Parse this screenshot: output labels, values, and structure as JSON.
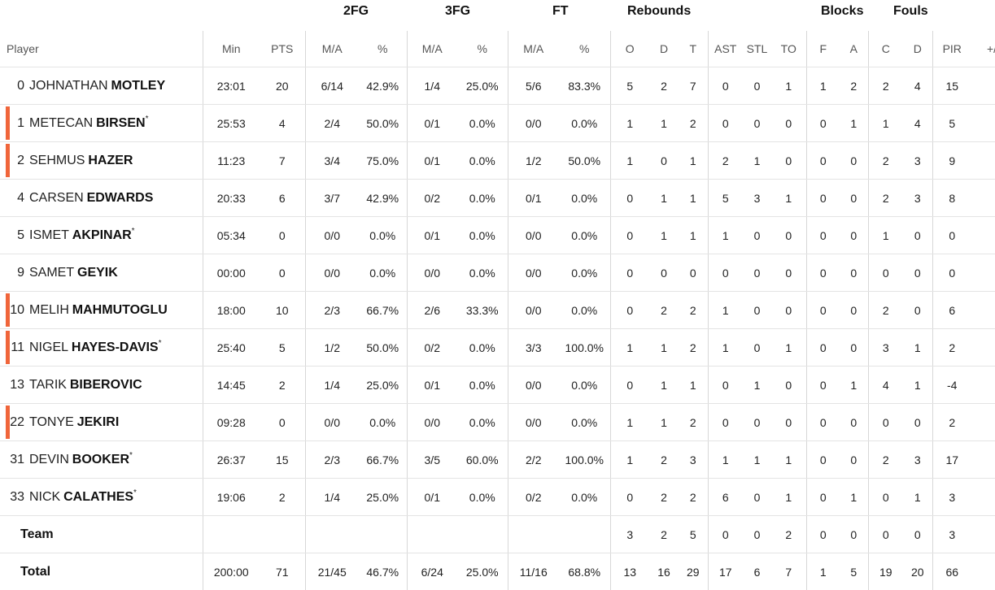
{
  "groups": {
    "fg2": "2FG",
    "fg3": "3FG",
    "ft": "FT",
    "rebounds": "Rebounds",
    "blocks": "Blocks",
    "fouls": "Fouls"
  },
  "headers": {
    "player": "Player",
    "min": "Min",
    "pts": "PTS",
    "fg2_ma": "M/A",
    "fg2_pct": "%",
    "fg3_ma": "M/A",
    "fg3_pct": "%",
    "ft_ma": "M/A",
    "ft_pct": "%",
    "reb_o": "O",
    "reb_d": "D",
    "reb_t": "T",
    "ast": "AST",
    "stl": "STL",
    "to": "TO",
    "blk_f": "F",
    "blk_a": "A",
    "foul_c": "C",
    "foul_d": "D",
    "pir": "PIR",
    "pm": "+/"
  },
  "colors": {
    "starter_accent": "#f0653a",
    "divider": "#d7d7d7"
  },
  "players": [
    {
      "num": "0",
      "first": "JOHNATHAN",
      "last": "MOTLEY",
      "star": "",
      "starter": false,
      "min": "23:01",
      "pts": "20",
      "fg2": "6/14",
      "fg2p": "42.9%",
      "fg3": "1/4",
      "fg3p": "25.0%",
      "ft": "5/6",
      "ftp": "83.3%",
      "o": "5",
      "d": "2",
      "t": "7",
      "ast": "0",
      "stl": "0",
      "to": "1",
      "bf": "1",
      "ba": "2",
      "fc": "2",
      "fd": "4",
      "pir": "15"
    },
    {
      "num": "1",
      "first": "METECAN",
      "last": "BIRSEN",
      "star": "*",
      "starter": true,
      "min": "25:53",
      "pts": "4",
      "fg2": "2/4",
      "fg2p": "50.0%",
      "fg3": "0/1",
      "fg3p": "0.0%",
      "ft": "0/0",
      "ftp": "0.0%",
      "o": "1",
      "d": "1",
      "t": "2",
      "ast": "0",
      "stl": "0",
      "to": "0",
      "bf": "0",
      "ba": "1",
      "fc": "1",
      "fd": "4",
      "pir": "5"
    },
    {
      "num": "2",
      "first": "SEHMUS",
      "last": "HAZER",
      "star": "",
      "starter": true,
      "min": "11:23",
      "pts": "7",
      "fg2": "3/4",
      "fg2p": "75.0%",
      "fg3": "0/1",
      "fg3p": "0.0%",
      "ft": "1/2",
      "ftp": "50.0%",
      "o": "1",
      "d": "0",
      "t": "1",
      "ast": "2",
      "stl": "1",
      "to": "0",
      "bf": "0",
      "ba": "0",
      "fc": "2",
      "fd": "3",
      "pir": "9"
    },
    {
      "num": "4",
      "first": "CARSEN",
      "last": "EDWARDS",
      "star": "",
      "starter": false,
      "min": "20:33",
      "pts": "6",
      "fg2": "3/7",
      "fg2p": "42.9%",
      "fg3": "0/2",
      "fg3p": "0.0%",
      "ft": "0/1",
      "ftp": "0.0%",
      "o": "0",
      "d": "1",
      "t": "1",
      "ast": "5",
      "stl": "3",
      "to": "1",
      "bf": "0",
      "ba": "0",
      "fc": "2",
      "fd": "3",
      "pir": "8"
    },
    {
      "num": "5",
      "first": "ISMET",
      "last": "AKPINAR",
      "star": "*",
      "starter": false,
      "min": "05:34",
      "pts": "0",
      "fg2": "0/0",
      "fg2p": "0.0%",
      "fg3": "0/1",
      "fg3p": "0.0%",
      "ft": "0/0",
      "ftp": "0.0%",
      "o": "0",
      "d": "1",
      "t": "1",
      "ast": "1",
      "stl": "0",
      "to": "0",
      "bf": "0",
      "ba": "0",
      "fc": "1",
      "fd": "0",
      "pir": "0"
    },
    {
      "num": "9",
      "first": "SAMET",
      "last": "GEYIK",
      "star": "",
      "starter": false,
      "min": "00:00",
      "pts": "0",
      "fg2": "0/0",
      "fg2p": "0.0%",
      "fg3": "0/0",
      "fg3p": "0.0%",
      "ft": "0/0",
      "ftp": "0.0%",
      "o": "0",
      "d": "0",
      "t": "0",
      "ast": "0",
      "stl": "0",
      "to": "0",
      "bf": "0",
      "ba": "0",
      "fc": "0",
      "fd": "0",
      "pir": "0"
    },
    {
      "num": "10",
      "first": "MELIH",
      "last": "MAHMUTOGLU",
      "star": "",
      "starter": true,
      "min": "18:00",
      "pts": "10",
      "fg2": "2/3",
      "fg2p": "66.7%",
      "fg3": "2/6",
      "fg3p": "33.3%",
      "ft": "0/0",
      "ftp": "0.0%",
      "o": "0",
      "d": "2",
      "t": "2",
      "ast": "1",
      "stl": "0",
      "to": "0",
      "bf": "0",
      "ba": "0",
      "fc": "2",
      "fd": "0",
      "pir": "6"
    },
    {
      "num": "11",
      "first": "NIGEL",
      "last": "HAYES-DAVIS",
      "star": "*",
      "starter": true,
      "min": "25:40",
      "pts": "5",
      "fg2": "1/2",
      "fg2p": "50.0%",
      "fg3": "0/2",
      "fg3p": "0.0%",
      "ft": "3/3",
      "ftp": "100.0%",
      "o": "1",
      "d": "1",
      "t": "2",
      "ast": "1",
      "stl": "0",
      "to": "1",
      "bf": "0",
      "ba": "0",
      "fc": "3",
      "fd": "1",
      "pir": "2"
    },
    {
      "num": "13",
      "first": "TARIK",
      "last": "BIBEROVIC",
      "star": "",
      "starter": false,
      "min": "14:45",
      "pts": "2",
      "fg2": "1/4",
      "fg2p": "25.0%",
      "fg3": "0/1",
      "fg3p": "0.0%",
      "ft": "0/0",
      "ftp": "0.0%",
      "o": "0",
      "d": "1",
      "t": "1",
      "ast": "0",
      "stl": "1",
      "to": "0",
      "bf": "0",
      "ba": "1",
      "fc": "4",
      "fd": "1",
      "pir": "-4"
    },
    {
      "num": "22",
      "first": "TONYE",
      "last": "JEKIRI",
      "star": "",
      "starter": true,
      "min": "09:28",
      "pts": "0",
      "fg2": "0/0",
      "fg2p": "0.0%",
      "fg3": "0/0",
      "fg3p": "0.0%",
      "ft": "0/0",
      "ftp": "0.0%",
      "o": "1",
      "d": "1",
      "t": "2",
      "ast": "0",
      "stl": "0",
      "to": "0",
      "bf": "0",
      "ba": "0",
      "fc": "0",
      "fd": "0",
      "pir": "2"
    },
    {
      "num": "31",
      "first": "DEVIN",
      "last": "BOOKER",
      "star": "*",
      "starter": false,
      "min": "26:37",
      "pts": "15",
      "fg2": "2/3",
      "fg2p": "66.7%",
      "fg3": "3/5",
      "fg3p": "60.0%",
      "ft": "2/2",
      "ftp": "100.0%",
      "o": "1",
      "d": "2",
      "t": "3",
      "ast": "1",
      "stl": "1",
      "to": "1",
      "bf": "0",
      "ba": "0",
      "fc": "2",
      "fd": "3",
      "pir": "17"
    },
    {
      "num": "33",
      "first": "NICK",
      "last": "CALATHES",
      "star": "*",
      "starter": false,
      "min": "19:06",
      "pts": "2",
      "fg2": "1/4",
      "fg2p": "25.0%",
      "fg3": "0/1",
      "fg3p": "0.0%",
      "ft": "0/2",
      "ftp": "0.0%",
      "o": "0",
      "d": "2",
      "t": "2",
      "ast": "6",
      "stl": "0",
      "to": "1",
      "bf": "0",
      "ba": "1",
      "fc": "0",
      "fd": "1",
      "pir": "3"
    }
  ],
  "team": {
    "label": "Team",
    "min": "",
    "pts": "",
    "fg2": "",
    "fg2p": "",
    "fg3": "",
    "fg3p": "",
    "ft": "",
    "ftp": "",
    "o": "3",
    "d": "2",
    "t": "5",
    "ast": "0",
    "stl": "0",
    "to": "2",
    "bf": "0",
    "ba": "0",
    "fc": "0",
    "fd": "0",
    "pir": "3"
  },
  "total": {
    "label": "Total",
    "min": "200:00",
    "pts": "71",
    "fg2": "21/45",
    "fg2p": "46.7%",
    "fg3": "6/24",
    "fg3p": "25.0%",
    "ft": "11/16",
    "ftp": "68.8%",
    "o": "13",
    "d": "16",
    "t": "29",
    "ast": "17",
    "stl": "6",
    "to": "7",
    "bf": "1",
    "ba": "5",
    "fc": "19",
    "fd": "20",
    "pir": "66"
  }
}
